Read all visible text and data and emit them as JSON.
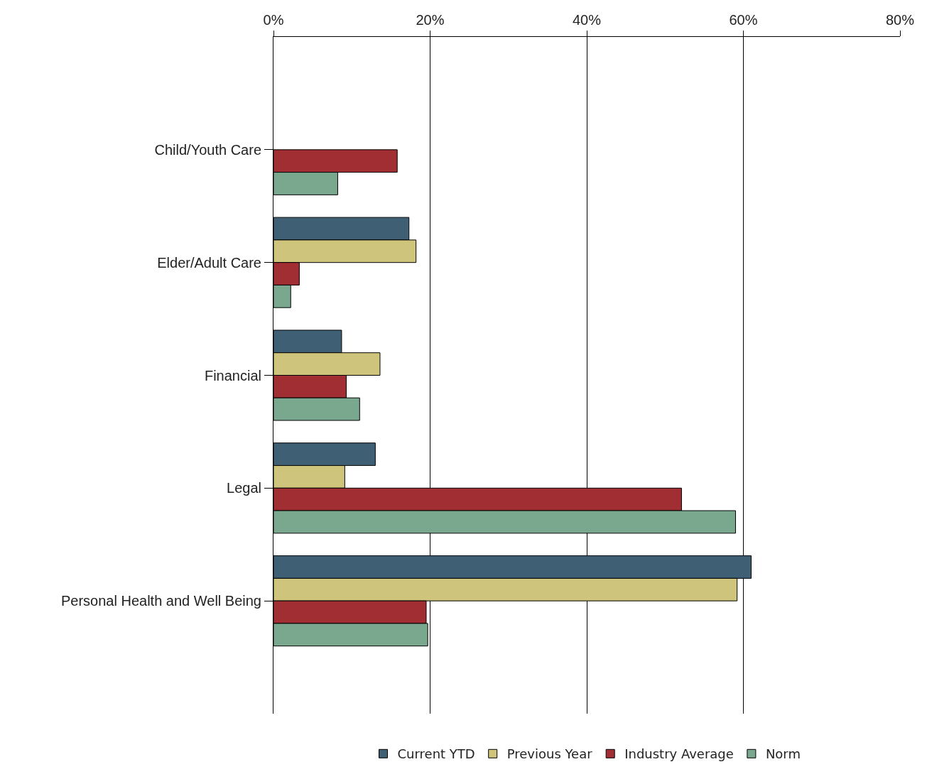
{
  "chart_data": {
    "type": "bar",
    "orientation": "horizontal",
    "categories": [
      "Child/Youth Care",
      "Elder/Adult Care",
      "Financial",
      "Legal",
      "Personal Health and Well Being"
    ],
    "series": [
      {
        "name": "Current YTD",
        "color": "#3f5f75",
        "values": [
          null,
          17.3,
          8.7,
          13.0,
          61.0
        ]
      },
      {
        "name": "Previous Year",
        "color": "#cfc47c",
        "values": [
          null,
          18.2,
          13.6,
          9.1,
          59.2
        ]
      },
      {
        "name": "Industry Average",
        "color": "#a12e33",
        "values": [
          15.8,
          3.3,
          9.3,
          52.1,
          19.5
        ]
      },
      {
        "name": "Norm",
        "color": "#7aa88f",
        "values": [
          8.2,
          2.2,
          11.0,
          59.0,
          19.7
        ]
      }
    ],
    "xlim": [
      0,
      80
    ],
    "xticks": [
      {
        "value": 0,
        "label": "0%"
      },
      {
        "value": 20,
        "label": "20%"
      },
      {
        "value": 40,
        "label": "40%"
      },
      {
        "value": 60,
        "label": "60%"
      },
      {
        "value": 80,
        "label": "80%"
      }
    ],
    "grid": "x",
    "legend": "bottom"
  }
}
